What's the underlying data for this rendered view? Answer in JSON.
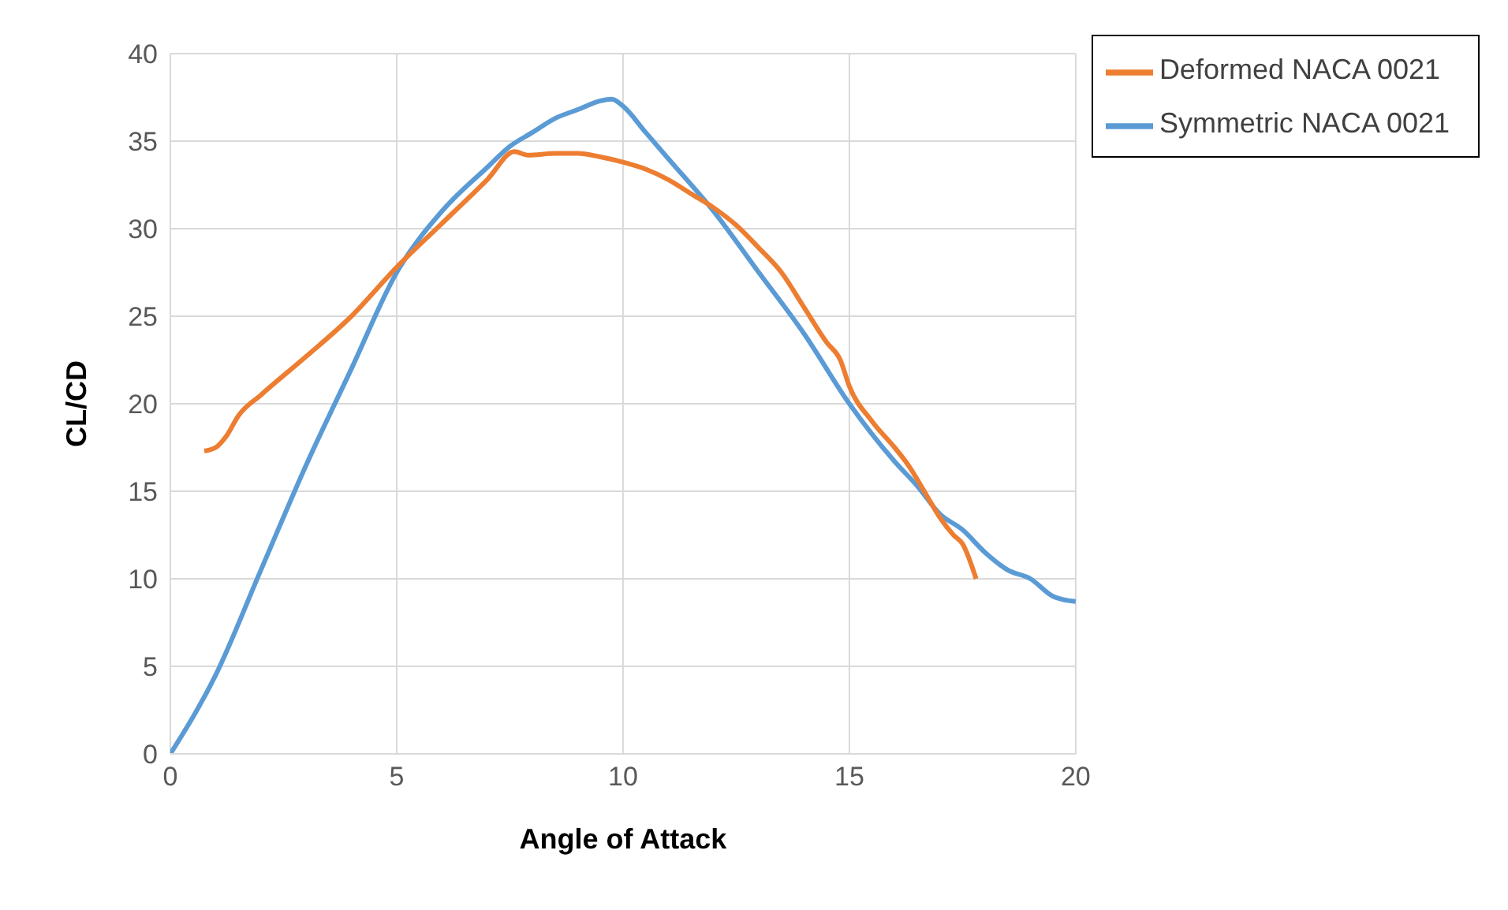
{
  "chart_data": {
    "type": "line",
    "xlabel": "Angle of Attack",
    "ylabel": "CL/CD",
    "xlim": [
      0,
      20
    ],
    "xticks": [
      0,
      5,
      10,
      15,
      20
    ],
    "ylim": [
      0,
      40
    ],
    "yticks": [
      0,
      5,
      10,
      15,
      20,
      25,
      30,
      35,
      40
    ],
    "grid": true,
    "legend": "top right",
    "marker": "none",
    "line_style": "solid",
    "series": [
      {
        "name": "Symmetric NACA 0021",
        "color": "#5b9bd5",
        "x": [
          0,
          1,
          2,
          3,
          4,
          5,
          6,
          7,
          7.5,
          8,
          8.5,
          9,
          9.5,
          9.75,
          10,
          10.5,
          11,
          12,
          13,
          14,
          15,
          16,
          16.5,
          17,
          17.5,
          18,
          18.5,
          19,
          19.5,
          20
        ],
        "values": [
          0,
          4.5,
          10.5,
          16.5,
          22,
          27.5,
          31,
          33.5,
          34.7,
          35.5,
          36.3,
          36.8,
          37.3,
          37.4,
          37,
          35.5,
          34,
          31,
          27.5,
          24,
          20,
          16.7,
          15.3,
          13.7,
          12.8,
          11.5,
          10.5,
          10,
          9,
          8.7
        ]
      },
      {
        "name": "Deformed NACA 0021",
        "color": "#ed7d31",
        "x": [
          0.75,
          1,
          1.25,
          1.5,
          2,
          3,
          4,
          5,
          6,
          7,
          7.6,
          7.9,
          8.5,
          9,
          9.5,
          10,
          10.5,
          11,
          11.5,
          12,
          12.5,
          13,
          13.5,
          14,
          14.5,
          14.8,
          15,
          15.5,
          16,
          16.3,
          16.7,
          17,
          17.3,
          17.5,
          17.8
        ],
        "values": [
          17.3,
          17.5,
          18.2,
          19.3,
          20.5,
          22.7,
          25,
          27.8,
          30.3,
          32.8,
          34.4,
          34.2,
          34.3,
          34.3,
          34.1,
          33.8,
          33.4,
          32.8,
          32,
          31.2,
          30.2,
          28.9,
          27.5,
          25.5,
          23.5,
          22.5,
          21,
          19,
          17.5,
          16.5,
          14.8,
          13.5,
          12.5,
          12,
          10
        ]
      }
    ]
  }
}
